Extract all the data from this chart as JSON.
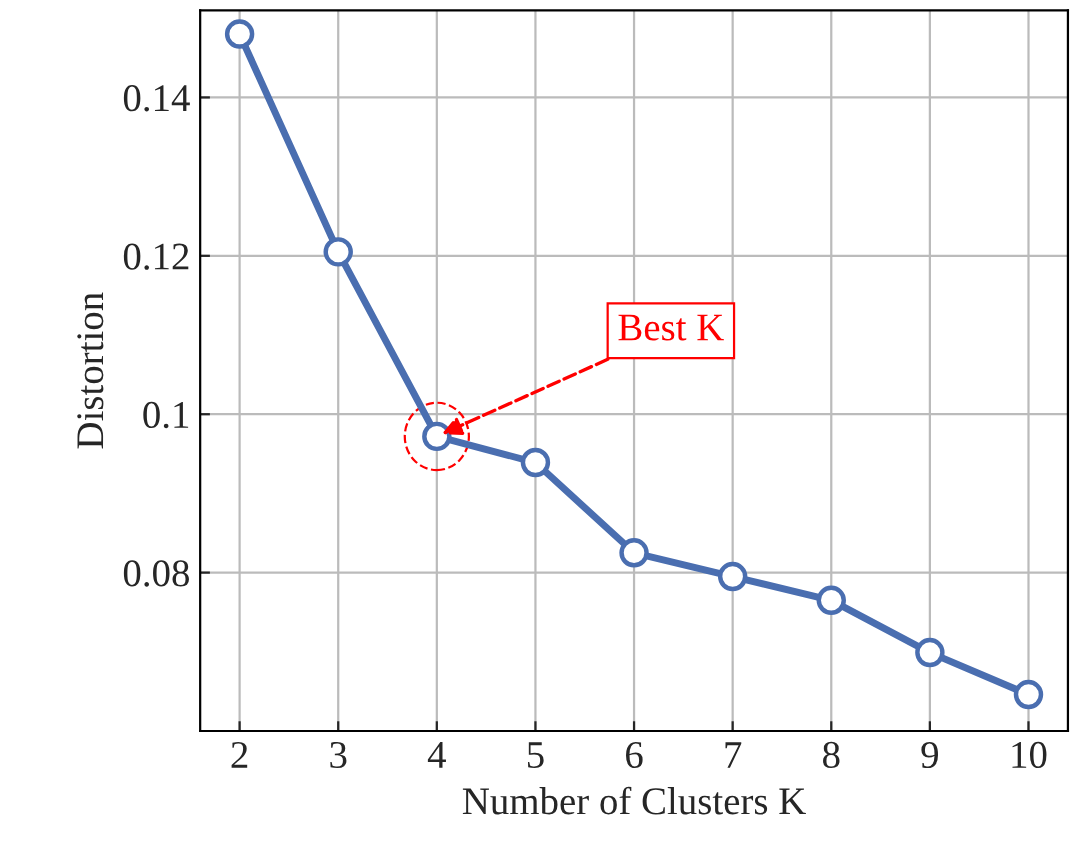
{
  "chart_data": {
    "type": "line",
    "xlabel": "Number of Clusters K",
    "ylabel": "Distortion",
    "x": [
      2,
      3,
      4,
      5,
      6,
      7,
      8,
      9,
      10
    ],
    "series": [
      {
        "color": "#4a6eb0",
        "values": [
          0.148,
          0.1205,
          0.0972,
          0.0939,
          0.0825,
          0.0795,
          0.0765,
          0.0699,
          0.0646
        ]
      }
    ],
    "xlim": [
      1.6,
      10.4
    ],
    "ylim": [
      0.06,
      0.151
    ],
    "xticks": [
      2,
      3,
      4,
      5,
      6,
      7,
      8,
      9,
      10
    ],
    "yticks": [
      0.08,
      0.1,
      0.12,
      0.14
    ],
    "annotations": [
      {
        "text": "Best K",
        "x": 4,
        "y": 0.0972
      }
    ],
    "grid": true,
    "marker": "circle",
    "line_style": "solid"
  }
}
